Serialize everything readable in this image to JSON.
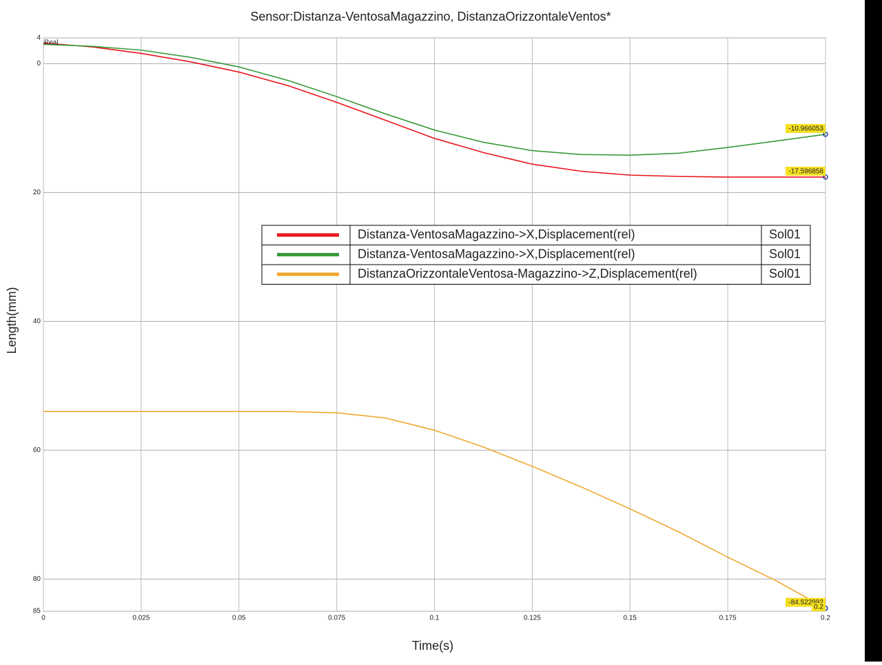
{
  "chart_data": {
    "type": "line",
    "title": "Sensor:Distanza-VentosaMagazzino, DistanzaOrizzontaleVentos*",
    "x_label": "Time(s)",
    "y_label": "Length(mm)",
    "annotations": [
      "Real",
      "0.2"
    ],
    "x": [
      0,
      0.0125,
      0.025,
      0.0375,
      0.05,
      0.0625,
      0.075,
      0.0875,
      0.1,
      0.1125,
      0.125,
      0.1375,
      0.15,
      0.1625,
      0.175,
      0.1875,
      0.2
    ],
    "series": [
      {
        "name": "Distanza-VentosaMagazzino->X,Displacement(rel)",
        "solution": "Sol01",
        "color": "#e8141a",
        "values": [
          3.2,
          2.6,
          1.6,
          0.3,
          -1.3,
          -3.4,
          -6.0,
          -8.8,
          -11.6,
          -13.8,
          -15.6,
          -16.7,
          -17.3,
          -17.5,
          -17.6,
          -17.6,
          -17.596858
        ]
      },
      {
        "name": "Distanza-VentosaMagazzino->X,Displacement(rel)",
        "solution": "Sol01",
        "color": "#3a9a3a",
        "values": [
          3.0,
          2.7,
          2.1,
          1.0,
          -0.5,
          -2.6,
          -5.1,
          -7.8,
          -10.3,
          -12.2,
          -13.5,
          -14.1,
          -14.2,
          -13.9,
          -13.0,
          -12.0,
          -10.966053
        ]
      },
      {
        "name": "DistanzaOrizzontaleVentosa-Magazzino->Z,Displacement(rel)",
        "solution": "Sol01",
        "color": "#f0a830",
        "values": [
          -54,
          -54,
          -54,
          -54,
          -54,
          -54,
          -54.2,
          -55.0,
          -56.9,
          -59.5,
          -62.5,
          -65.7,
          -69.1,
          -72.7,
          -76.6,
          -80.3,
          -84.522992
        ]
      }
    ],
    "xlim": [
      0,
      0.2
    ],
    "xticks": [
      0,
      0.025,
      0.05,
      0.075,
      0.1,
      0.125,
      0.15,
      0.175,
      0.2
    ],
    "ylim": [
      -85,
      4
    ],
    "yticks": [
      4,
      0,
      {
        "value": -20,
        "label": "20"
      },
      {
        "value": -40,
        "label": "40"
      },
      {
        "value": -60,
        "label": "60"
      },
      {
        "value": -80,
        "label": "80"
      },
      {
        "value": -85,
        "label": "85"
      }
    ],
    "grid": true
  }
}
